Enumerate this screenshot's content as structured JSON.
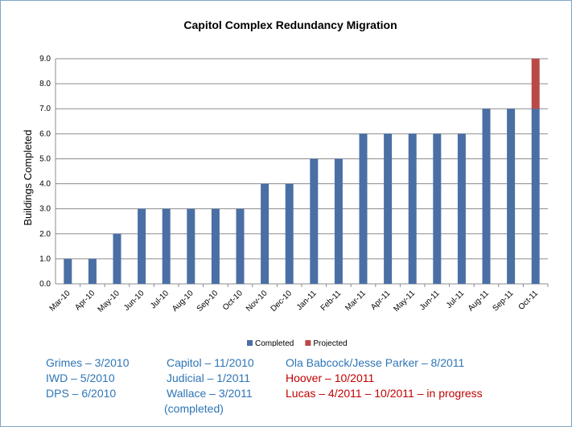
{
  "chart_data": {
    "type": "stacked-bar",
    "title": "Capitol Complex Redundancy Migration",
    "y_label": "Buildings Completed",
    "categories": [
      "Mar-10",
      "Apr-10",
      "May-10",
      "Jun-10",
      "Jul-10",
      "Aug-10",
      "Sep-10",
      "Oct-10",
      "Nov-10",
      "Dec-10",
      "Jan-11",
      "Feb-11",
      "Mar-11",
      "Apr-11",
      "May-11",
      "Jun-11",
      "Jul-11",
      "Aug-11",
      "Sep-11",
      "Oct-11"
    ],
    "series": [
      {
        "name": "Completed",
        "color": "#4a6fa5",
        "values": [
          1,
          1,
          2,
          3,
          3,
          3,
          3,
          3,
          4,
          4,
          5,
          5,
          6,
          6,
          6,
          6,
          6,
          7,
          7,
          7
        ]
      },
      {
        "name": "Projected",
        "color": "#b94a48",
        "values": [
          0,
          0,
          0,
          0,
          0,
          0,
          0,
          0,
          0,
          0,
          0,
          0,
          0,
          0,
          0,
          0,
          0,
          0,
          0,
          2
        ]
      }
    ],
    "ylim": [
      0,
      9
    ],
    "yticks": [
      {
        "value": 0,
        "label": "0.0"
      },
      {
        "value": 1,
        "label": "1.0"
      },
      {
        "value": 2,
        "label": "2.0"
      },
      {
        "value": 3,
        "label": "3.0"
      },
      {
        "value": 4,
        "label": "4.0"
      },
      {
        "value": 5,
        "label": "5.0"
      },
      {
        "value": 6,
        "label": "6.0"
      },
      {
        "value": 7,
        "label": "7.0"
      },
      {
        "value": 8,
        "label": "8.0"
      },
      {
        "value": 9,
        "label": "9.0"
      }
    ],
    "grid": true,
    "legend": "bottom"
  },
  "notes": [
    [
      {
        "text": "Grimes – 3/2010",
        "color": "#2e75b6"
      },
      {
        "text": "IWD – 5/2010",
        "color": "#2e75b6"
      },
      {
        "text": "DPS – 6/2010",
        "color": "#2e75b6"
      }
    ],
    [
      {
        "text": "Capitol – 11/2010",
        "color": "#2e75b6"
      },
      {
        "text": "Judicial – 1/2011",
        "color": "#2e75b6"
      },
      {
        "text": "Wallace – 3/2011",
        "color": "#2e75b6"
      },
      {
        "text": "(completed)",
        "color": "#2e75b6"
      }
    ],
    [
      {
        "text": "Ola Babcock/Jesse Parker – 8/2011",
        "color": "#2e75b6"
      },
      {
        "text": "Hoover – 10/2011",
        "color": "#c00000"
      },
      {
        "text": "Lucas – 4/2011 – 10/2011 – in progress",
        "color": "#c00000"
      }
    ]
  ]
}
